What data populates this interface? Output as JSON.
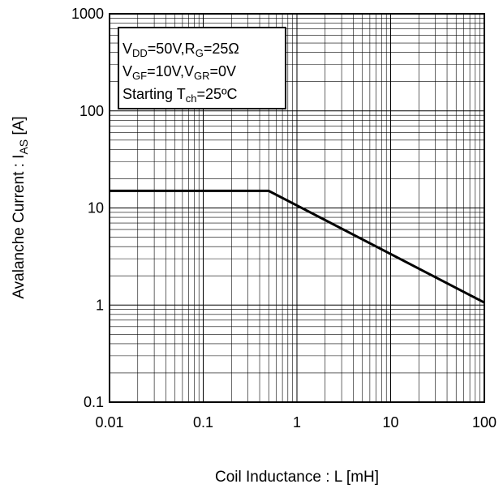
{
  "chart_data": {
    "type": "line",
    "x_scale": "log",
    "y_scale": "log",
    "xlim": [
      0.01,
      100
    ],
    "ylim": [
      0.1,
      1000
    ],
    "grid": true,
    "x_ticks": [
      "0.01",
      "0.1",
      "1",
      "10",
      "100"
    ],
    "y_ticks": [
      "0.1",
      "1",
      "10",
      "100",
      "1000"
    ],
    "xlabel": "Coil Inductance : L [mH]",
    "ylabel": {
      "main": "Avalanche Current : I",
      "sub": "AS",
      "unit": "  [A]"
    },
    "series": [
      {
        "x": [
          0.01,
          0.5,
          100
        ],
        "y": [
          15,
          15,
          1.06
        ],
        "color": "#000000"
      }
    ],
    "annotation": [
      {
        "parts": [
          {
            "text": "V"
          },
          {
            "text": "DD",
            "sub": true
          },
          {
            "text": "=50V,R"
          },
          {
            "text": "G",
            "sub": true
          },
          {
            "text": "=25Ω"
          }
        ]
      },
      {
        "parts": [
          {
            "text": "V"
          },
          {
            "text": "GF",
            "sub": true
          },
          {
            "text": "=10V,V"
          },
          {
            "text": "GR",
            "sub": true
          },
          {
            "text": "=0V"
          }
        ]
      },
      {
        "parts": [
          {
            "text": "Starting T"
          },
          {
            "text": "ch",
            "sub": true
          },
          {
            "text": "=25ºC"
          }
        ]
      }
    ]
  }
}
